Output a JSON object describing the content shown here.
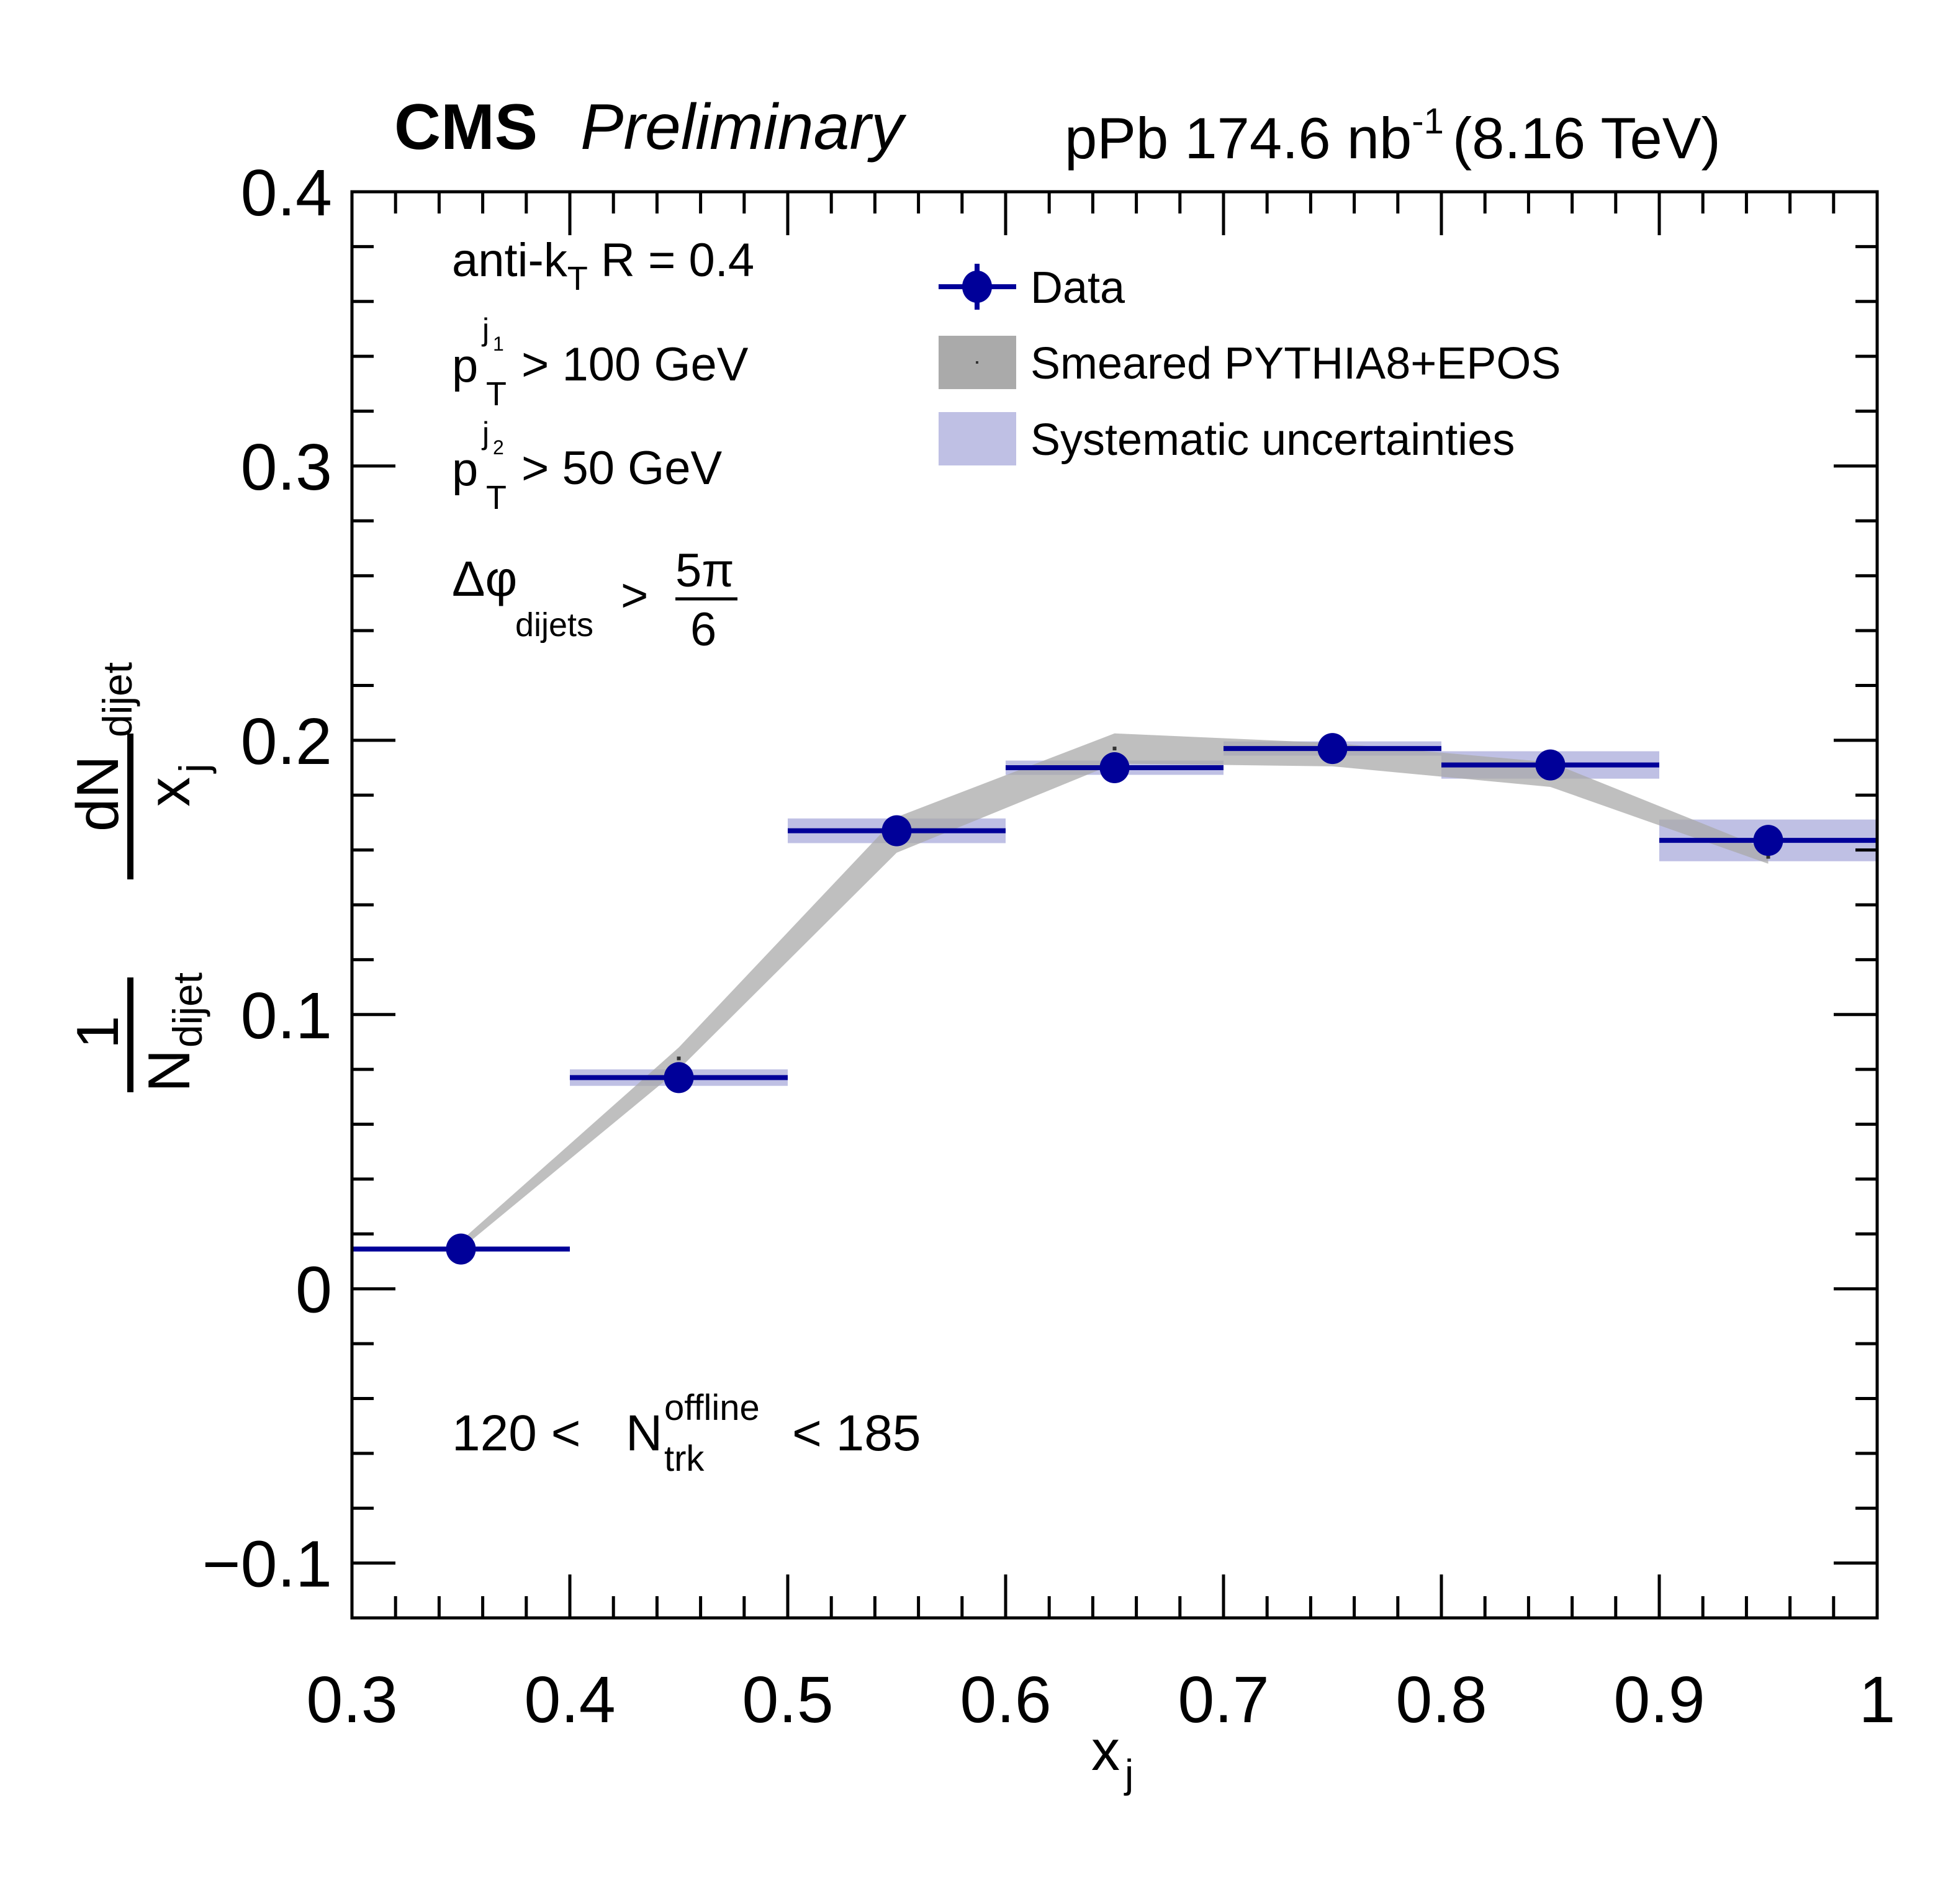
{
  "header": {
    "experiment": "CMS",
    "status": "Preliminary",
    "lumi_prefix": "pPb 174.6 nb",
    "lumi_exp": "-1",
    "energy": "(8.16 TeV)"
  },
  "annotations": {
    "algo_main": "anti-k",
    "algo_sub": "T",
    "algo_rest": " R = 0.4",
    "pt1_main": "p",
    "pt1_sup": "j",
    "pt1_supsub": "1",
    "pt1_sub": "T",
    "pt1_rest": "> 100 GeV",
    "pt2_main": "p",
    "pt2_sup": "j",
    "pt2_supsub": "2",
    "pt2_sub": "T",
    "pt2_rest": "> 50 GeV",
    "dphi_main": "Δφ",
    "dphi_sub": "dijets",
    "dphi_gt": ">",
    "dphi_num": "5π",
    "dphi_den": "6",
    "ntrk_lo": "120 <",
    "ntrk_main": "N",
    "ntrk_sup": "offline",
    "ntrk_sub": "trk",
    "ntrk_hi": "< 185"
  },
  "legend": {
    "data": "Data",
    "mc": "Smeared PYTHIA8+EPOS",
    "sys": "Systematic uncertainties"
  },
  "axes": {
    "ylabel_top_main": "dN",
    "ylabel_top_sub": "dijet",
    "ylabel_bot_main": "x",
    "ylabel_bot_sub": "j",
    "ylabel_pre_num": "1",
    "ylabel_pre_den_main": "N",
    "ylabel_pre_den_sub": "dijet",
    "xlabel_main": "x",
    "xlabel_sub": "j"
  },
  "colors": {
    "data": "#000099",
    "sys": "#bfc0e4",
    "mc": "#aaaaaa",
    "frame": "#000000"
  },
  "chart_data": {
    "type": "scatter",
    "title": "CMS Preliminary — pPb 174.6 nb^-1 (8.16 TeV)",
    "xlabel": "x_j",
    "ylabel": "1/N_dijet dN_dijet/x_j",
    "xlim": [
      0.3,
      1.0
    ],
    "ylim": [
      -0.12,
      0.4
    ],
    "x_ticks": [
      "0.3",
      "0.4",
      "0.5",
      "0.6",
      "0.7",
      "0.8",
      "0.9",
      "1"
    ],
    "x_tick_values": [
      0.3,
      0.4,
      0.5,
      0.6,
      0.7,
      0.8,
      0.9,
      1.0
    ],
    "y_ticks": [
      "−0.1",
      "0",
      "0.1",
      "0.2",
      "0.3",
      "0.4"
    ],
    "y_tick_values": [
      -0.1,
      0,
      0.1,
      0.2,
      0.3,
      0.4
    ],
    "grid": false,
    "legend_position": "top-center",
    "series": [
      {
        "name": "Data",
        "type": "points",
        "x": [
          0.35,
          0.45,
          0.55,
          0.65,
          0.75,
          0.85,
          0.95
        ],
        "x_low": [
          0.3,
          0.4,
          0.5,
          0.6,
          0.7,
          0.8,
          0.9
        ],
        "x_high": [
          0.4,
          0.5,
          0.6,
          0.7,
          0.8,
          0.9,
          1.0
        ],
        "y": [
          0.0145,
          0.077,
          0.167,
          0.19,
          0.197,
          0.191,
          0.1635
        ]
      },
      {
        "name": "Systematic uncertainties",
        "type": "boxes",
        "x": [
          0.35,
          0.45,
          0.55,
          0.65,
          0.75,
          0.85,
          0.95
        ],
        "y_err": [
          0.0005,
          0.003,
          0.0045,
          0.0026,
          0.0026,
          0.005,
          0.0076
        ]
      },
      {
        "name": "Smeared PYTHIA8+EPOS",
        "type": "band",
        "x": [
          0.35,
          0.45,
          0.55,
          0.65,
          0.75,
          0.85,
          0.95
        ],
        "y_low": [
          0.0145,
          0.08,
          0.159,
          0.1915,
          0.1905,
          0.183,
          0.155
        ],
        "y_high": [
          0.0175,
          0.088,
          0.172,
          0.2025,
          0.199,
          0.192,
          0.16
        ]
      }
    ]
  }
}
